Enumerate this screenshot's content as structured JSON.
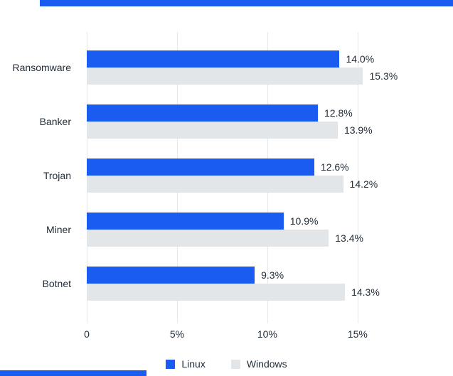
{
  "colors": {
    "accent_blue": "#1a5cf0",
    "bar_gray": "#e3e6e9",
    "gridline": "#e7e9ec",
    "text": "#1f2b38"
  },
  "decorations": {
    "top_partial_bar_color": "#1a5cf0",
    "bottom_partial_bar_color": "#1a5cf0"
  },
  "chart_data": {
    "type": "bar",
    "orientation": "horizontal",
    "title": "",
    "xlabel": "",
    "ylabel": "",
    "categories": [
      "Ransomware",
      "Banker",
      "Trojan",
      "Miner",
      "Botnet"
    ],
    "series": [
      {
        "name": "Linux",
        "color": "#1a5cf0",
        "values": [
          14.0,
          12.8,
          12.6,
          10.9,
          9.3
        ],
        "labels": [
          "14.0%",
          "12.8%",
          "12.6%",
          "10.9%",
          "9.3%"
        ]
      },
      {
        "name": "Windows",
        "color": "#e3e6e9",
        "values": [
          15.3,
          13.9,
          14.2,
          13.4,
          14.3
        ],
        "labels": [
          "15.3%",
          "13.9%",
          "14.2%",
          "13.4%",
          "14.3%"
        ]
      }
    ],
    "x_ticks": {
      "values": [
        0,
        5,
        10,
        15
      ],
      "labels": [
        "0",
        "5%",
        "10%",
        "15%"
      ]
    },
    "xlim": [
      0,
      17.25
    ],
    "grid": "vertical",
    "legend_position": "bottom"
  }
}
